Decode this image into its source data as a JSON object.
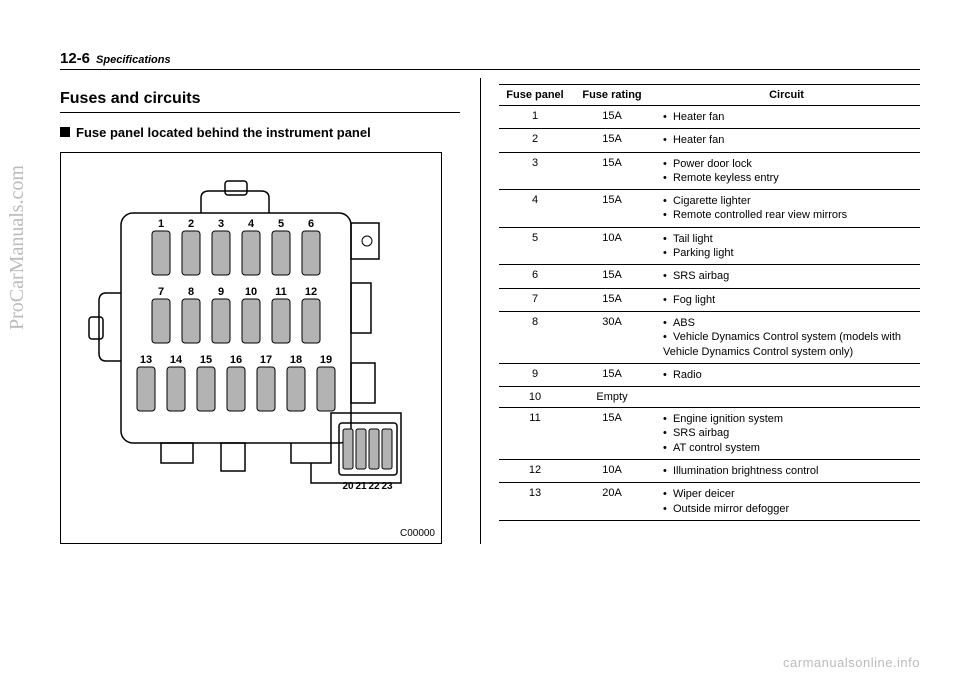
{
  "page": {
    "number": "12-6",
    "chapter": "Specifications"
  },
  "section": {
    "title": "Fuses and circuits",
    "subhead": "Fuse panel located behind the instrument panel"
  },
  "diagram": {
    "code": "C00000",
    "mainFuses": {
      "rows": [
        [
          1,
          2,
          3,
          4,
          5,
          6
        ],
        [
          7,
          8,
          9,
          10,
          11,
          12
        ],
        [
          13,
          14,
          15,
          16,
          17,
          18,
          19
        ]
      ]
    },
    "sideFuses": [
      20,
      21,
      22,
      23
    ]
  },
  "table": {
    "headers": {
      "panel": "Fuse panel",
      "rating": "Fuse rating",
      "circuit": "Circuit"
    },
    "rows": [
      {
        "panel": "1",
        "rating": "15A",
        "circuits": [
          "Heater fan"
        ]
      },
      {
        "panel": "2",
        "rating": "15A",
        "circuits": [
          "Heater fan"
        ]
      },
      {
        "panel": "3",
        "rating": "15A",
        "circuits": [
          "Power door lock",
          "Remote keyless entry"
        ]
      },
      {
        "panel": "4",
        "rating": "15A",
        "circuits": [
          "Cigarette lighter",
          "Remote controlled rear view mirrors"
        ]
      },
      {
        "panel": "5",
        "rating": "10A",
        "circuits": [
          "Tail light",
          "Parking light"
        ]
      },
      {
        "panel": "6",
        "rating": "15A",
        "circuits": [
          "SRS airbag"
        ]
      },
      {
        "panel": "7",
        "rating": "15A",
        "circuits": [
          "Fog light"
        ]
      },
      {
        "panel": "8",
        "rating": "30A",
        "circuits": [
          "ABS",
          "Vehicle Dynamics Control system (models with Vehicle Dynamics Control system only)"
        ]
      },
      {
        "panel": "9",
        "rating": "15A",
        "circuits": [
          "Radio"
        ]
      },
      {
        "panel": "10",
        "rating": "Empty",
        "circuits": []
      },
      {
        "panel": "11",
        "rating": "15A",
        "circuits": [
          "Engine ignition system",
          "SRS airbag",
          "AT control system"
        ]
      },
      {
        "panel": "12",
        "rating": "10A",
        "circuits": [
          "Illumination brightness control"
        ]
      },
      {
        "panel": "13",
        "rating": "20A",
        "circuits": [
          "Wiper deicer",
          "Outside mirror defogger"
        ]
      }
    ]
  },
  "watermarks": {
    "side": "ProCarManuals.com",
    "bottom": "carmanualsonline.info"
  },
  "style": {
    "fuseFill": "#b3b3b3",
    "stroke": "#000000",
    "fontSmall": 10,
    "fontFuse": 11
  }
}
